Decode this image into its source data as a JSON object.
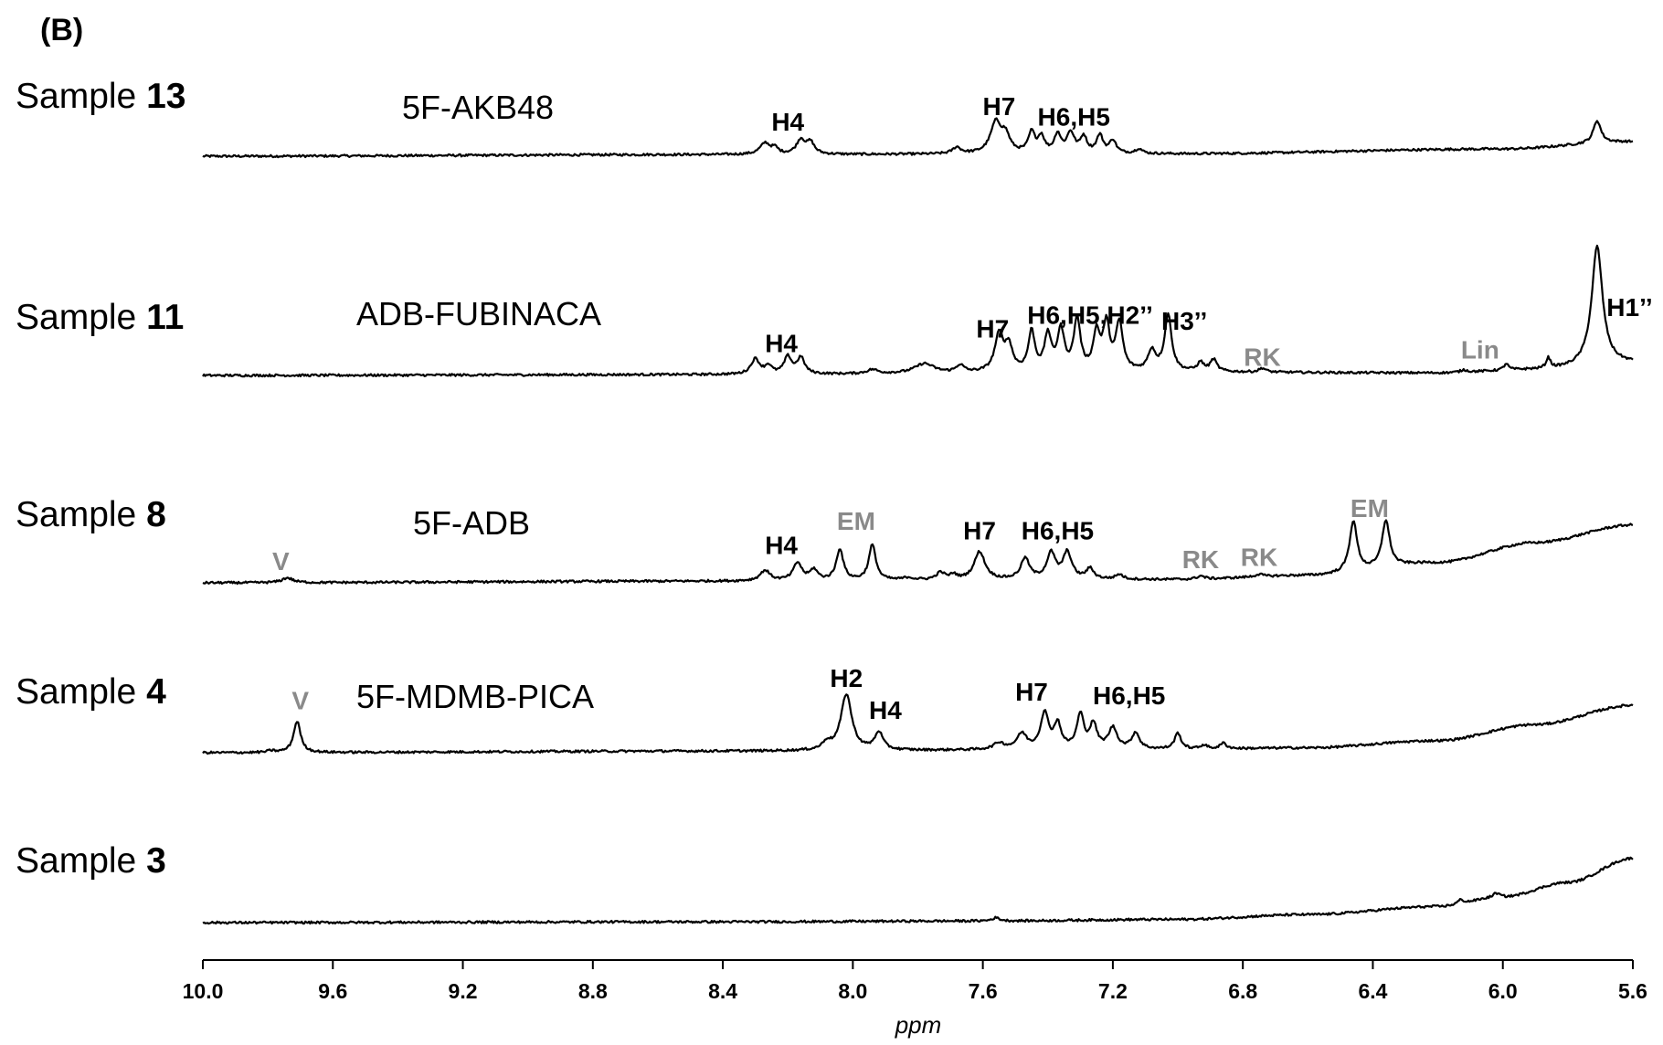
{
  "panel_label": "(B)",
  "chart_data": {
    "type": "line",
    "title": "",
    "xlabel": "ppm",
    "ylabel": "",
    "x_reversed": true,
    "xlim": [
      10.0,
      5.6
    ],
    "x_ticks": [
      "10.0",
      "9.6",
      "9.2",
      "8.8",
      "8.4",
      "8.0",
      "7.6",
      "7.2",
      "6.8",
      "6.4",
      "6.0",
      "5.6"
    ],
    "series": [
      {
        "name": "Sample 13",
        "sample_prefix": "Sample ",
        "sample_number": "13",
        "compound": "5F-AKB48",
        "baseline": [
          [
            10.0,
            0
          ],
          [
            8.4,
            0.2
          ],
          [
            7.0,
            0.3
          ],
          [
            6.0,
            0.9
          ],
          [
            5.6,
            1.8
          ]
        ],
        "peaks": [
          {
            "ppm": 8.27,
            "height": 1.4,
            "width": 0.018
          },
          {
            "ppm": 8.24,
            "height": 0.7,
            "width": 0.012
          },
          {
            "ppm": 8.16,
            "height": 1.8,
            "width": 0.016
          },
          {
            "ppm": 8.13,
            "height": 1.4,
            "width": 0.014
          },
          {
            "ppm": 7.68,
            "height": 0.8,
            "width": 0.015
          },
          {
            "ppm": 7.56,
            "height": 3.8,
            "width": 0.02
          },
          {
            "ppm": 7.53,
            "height": 2.0,
            "width": 0.016
          },
          {
            "ppm": 7.45,
            "height": 2.5,
            "width": 0.012
          },
          {
            "ppm": 7.42,
            "height": 2.0,
            "width": 0.012
          },
          {
            "ppm": 7.37,
            "height": 2.3,
            "width": 0.012
          },
          {
            "ppm": 7.33,
            "height": 2.5,
            "width": 0.014
          },
          {
            "ppm": 7.29,
            "height": 2.0,
            "width": 0.012
          },
          {
            "ppm": 7.24,
            "height": 2.2,
            "width": 0.012
          },
          {
            "ppm": 7.2,
            "height": 1.6,
            "width": 0.012
          },
          {
            "ppm": 7.12,
            "height": 0.6,
            "width": 0.012
          },
          {
            "ppm": 5.71,
            "height": 2.8,
            "width": 0.014
          }
        ],
        "labels": [
          {
            "text": "H4",
            "ppm": 8.2,
            "level": 3.2,
            "color": "black"
          },
          {
            "text": "H7",
            "ppm": 7.55,
            "level": 5.1,
            "color": "black"
          },
          {
            "text": "H6,H5",
            "ppm": 7.32,
            "level": 3.8,
            "color": "black"
          }
        ]
      },
      {
        "name": "Sample 11",
        "sample_prefix": "Sample ",
        "sample_number": "11",
        "compound": "ADB-FUBINACA",
        "baseline": [
          [
            10.0,
            0
          ],
          [
            8.4,
            0.1
          ],
          [
            7.0,
            0.4
          ],
          [
            6.2,
            0.3
          ],
          [
            5.9,
            0.7
          ],
          [
            5.6,
            1.5
          ]
        ],
        "peaks": [
          {
            "ppm": 8.3,
            "height": 1.9,
            "width": 0.016
          },
          {
            "ppm": 8.26,
            "height": 1.0,
            "width": 0.012
          },
          {
            "ppm": 8.2,
            "height": 2.1,
            "width": 0.014
          },
          {
            "ppm": 8.16,
            "height": 2.0,
            "width": 0.014
          },
          {
            "ppm": 7.94,
            "height": 0.5,
            "width": 0.02
          },
          {
            "ppm": 7.78,
            "height": 1.2,
            "width": 0.035
          },
          {
            "ppm": 7.67,
            "height": 0.9,
            "width": 0.014
          },
          {
            "ppm": 7.55,
            "height": 4.6,
            "width": 0.016
          },
          {
            "ppm": 7.52,
            "height": 3.0,
            "width": 0.014
          },
          {
            "ppm": 7.45,
            "height": 4.9,
            "width": 0.012
          },
          {
            "ppm": 7.4,
            "height": 4.4,
            "width": 0.012
          },
          {
            "ppm": 7.36,
            "height": 5.0,
            "width": 0.013
          },
          {
            "ppm": 7.31,
            "height": 6.4,
            "width": 0.012
          },
          {
            "ppm": 7.25,
            "height": 4.6,
            "width": 0.012
          },
          {
            "ppm": 7.22,
            "height": 5.6,
            "width": 0.012
          },
          {
            "ppm": 7.18,
            "height": 5.9,
            "width": 0.013
          },
          {
            "ppm": 7.08,
            "height": 2.5,
            "width": 0.014
          },
          {
            "ppm": 7.03,
            "height": 7.0,
            "width": 0.013
          },
          {
            "ppm": 6.93,
            "height": 1.1,
            "width": 0.012
          },
          {
            "ppm": 6.89,
            "height": 1.5,
            "width": 0.012
          },
          {
            "ppm": 6.74,
            "height": 0.5,
            "width": 0.012
          },
          {
            "ppm": 6.12,
            "height": 0.3,
            "width": 0.012
          },
          {
            "ppm": 5.99,
            "height": 0.8,
            "width": 0.008
          },
          {
            "ppm": 5.86,
            "height": 1.3,
            "width": 0.008
          },
          {
            "ppm": 5.71,
            "height": 14.8,
            "width": 0.02
          }
        ],
        "labels": [
          {
            "text": "H4",
            "ppm": 8.22,
            "level": 2.9,
            "color": "black"
          },
          {
            "text": "H7",
            "ppm": 7.57,
            "level": 4.7,
            "color": "black"
          },
          {
            "text": "H6,H5,H2’’",
            "ppm": 7.27,
            "level": 6.4,
            "color": "black"
          },
          {
            "text": "H3’’",
            "ppm": 6.98,
            "level": 5.7,
            "color": "black"
          },
          {
            "text": "RK",
            "ppm": 6.74,
            "level": 1.2,
            "color": "gray"
          },
          {
            "text": "Lin",
            "ppm": 6.07,
            "level": 2.1,
            "color": "gray"
          },
          {
            "text": "H1’’",
            "ppm": 5.61,
            "level": 7.4,
            "color": "black"
          }
        ]
      },
      {
        "name": "Sample 8",
        "sample_prefix": "Sample ",
        "sample_number": "8",
        "compound": "5F-ADB",
        "baseline": [
          [
            10.0,
            0
          ],
          [
            8.4,
            0.2
          ],
          [
            7.0,
            0.4
          ],
          [
            6.6,
            0.9
          ],
          [
            6.2,
            2.5
          ],
          [
            5.9,
            5.0
          ],
          [
            5.6,
            7.2
          ]
        ],
        "peaks": [
          {
            "ppm": 9.74,
            "height": 0.6,
            "width": 0.02
          },
          {
            "ppm": 8.27,
            "height": 1.3,
            "width": 0.018
          },
          {
            "ppm": 8.17,
            "height": 2.2,
            "width": 0.016
          },
          {
            "ppm": 8.12,
            "height": 1.3,
            "width": 0.014
          },
          {
            "ppm": 8.04,
            "height": 3.9,
            "width": 0.013
          },
          {
            "ppm": 7.94,
            "height": 4.4,
            "width": 0.013
          },
          {
            "ppm": 7.83,
            "height": 0.3,
            "width": 0.02
          },
          {
            "ppm": 7.73,
            "height": 0.9,
            "width": 0.016
          },
          {
            "ppm": 7.69,
            "height": 0.6,
            "width": 0.012
          },
          {
            "ppm": 7.61,
            "height": 3.5,
            "width": 0.02
          },
          {
            "ppm": 7.47,
            "height": 2.6,
            "width": 0.016
          },
          {
            "ppm": 7.39,
            "height": 3.2,
            "width": 0.016
          },
          {
            "ppm": 7.34,
            "height": 3.3,
            "width": 0.016
          },
          {
            "ppm": 7.27,
            "height": 1.3,
            "width": 0.014
          },
          {
            "ppm": 7.18,
            "height": 0.6,
            "width": 0.014
          },
          {
            "ppm": 6.93,
            "height": 0.4,
            "width": 0.014
          },
          {
            "ppm": 6.75,
            "height": 0.3,
            "width": 0.014
          },
          {
            "ppm": 6.46,
            "height": 6.3,
            "width": 0.014
          },
          {
            "ppm": 6.36,
            "height": 5.8,
            "width": 0.014
          }
        ],
        "labels": [
          {
            "text": "V",
            "ppm": 9.76,
            "level": 1.6,
            "color": "gray"
          },
          {
            "text": "H4",
            "ppm": 8.22,
            "level": 3.6,
            "color": "black"
          },
          {
            "text": "EM",
            "ppm": 7.99,
            "level": 6.6,
            "color": "gray"
          },
          {
            "text": "H7",
            "ppm": 7.61,
            "level": 5.4,
            "color": "black"
          },
          {
            "text": "H6,H5",
            "ppm": 7.37,
            "level": 5.4,
            "color": "black"
          },
          {
            "text": "RK",
            "ppm": 6.93,
            "level": 1.8,
            "color": "gray"
          },
          {
            "text": "RK",
            "ppm": 6.75,
            "level": 2.1,
            "color": "gray"
          },
          {
            "text": "EM",
            "ppm": 6.41,
            "level": 8.2,
            "color": "gray"
          }
        ]
      },
      {
        "name": "Sample 4",
        "sample_prefix": "Sample ",
        "sample_number": "4",
        "compound": "5F-MDMB-PICA",
        "baseline": [
          [
            10.0,
            0
          ],
          [
            8.4,
            0.2
          ],
          [
            7.0,
            0.4
          ],
          [
            6.6,
            0.6
          ],
          [
            6.2,
            1.5
          ],
          [
            5.9,
            3.5
          ],
          [
            5.6,
            5.9
          ]
        ],
        "peaks": [
          {
            "ppm": 9.79,
            "height": 0.2,
            "width": 0.015
          },
          {
            "ppm": 9.71,
            "height": 3.9,
            "width": 0.013
          },
          {
            "ppm": 8.08,
            "height": 0.9,
            "width": 0.015
          },
          {
            "ppm": 8.02,
            "height": 7.0,
            "width": 0.02
          },
          {
            "ppm": 7.92,
            "height": 2.2,
            "width": 0.015
          },
          {
            "ppm": 7.55,
            "height": 0.8,
            "width": 0.02
          },
          {
            "ppm": 7.48,
            "height": 1.9,
            "width": 0.018
          },
          {
            "ppm": 7.41,
            "height": 4.4,
            "width": 0.015
          },
          {
            "ppm": 7.37,
            "height": 3.0,
            "width": 0.013
          },
          {
            "ppm": 7.3,
            "height": 4.2,
            "width": 0.013
          },
          {
            "ppm": 7.26,
            "height": 3.0,
            "width": 0.013
          },
          {
            "ppm": 7.2,
            "height": 2.6,
            "width": 0.016
          },
          {
            "ppm": 7.13,
            "height": 2.0,
            "width": 0.014
          },
          {
            "ppm": 7.0,
            "height": 2.0,
            "width": 0.012
          },
          {
            "ppm": 6.92,
            "height": 0.5,
            "width": 0.012
          },
          {
            "ppm": 6.86,
            "height": 0.7,
            "width": 0.012
          }
        ],
        "labels": [
          {
            "text": "V",
            "ppm": 9.7,
            "level": 5.4,
            "color": "gray"
          },
          {
            "text": "H2",
            "ppm": 8.02,
            "level": 8.2,
            "color": "black"
          },
          {
            "text": "H4",
            "ppm": 7.9,
            "level": 4.2,
            "color": "black"
          },
          {
            "text": "H7",
            "ppm": 7.45,
            "level": 6.5,
            "color": "black"
          },
          {
            "text": "H6,H5",
            "ppm": 7.15,
            "level": 6.0,
            "color": "black"
          }
        ]
      },
      {
        "name": "Sample 3",
        "sample_prefix": "Sample ",
        "sample_number": "3",
        "compound": "",
        "baseline": [
          [
            10.0,
            0
          ],
          [
            8.4,
            0.1
          ],
          [
            7.6,
            0.2
          ],
          [
            7.0,
            0.4
          ],
          [
            6.6,
            1.0
          ],
          [
            6.2,
            2.0
          ],
          [
            6.0,
            3.2
          ],
          [
            5.8,
            5.0
          ],
          [
            5.6,
            8.0
          ]
        ],
        "peaks": [
          {
            "ppm": 7.56,
            "height": 0.4,
            "width": 0.015
          },
          {
            "ppm": 6.13,
            "height": 0.5,
            "width": 0.012
          },
          {
            "ppm": 6.02,
            "height": 0.5,
            "width": 0.012
          }
        ],
        "labels": []
      }
    ]
  }
}
